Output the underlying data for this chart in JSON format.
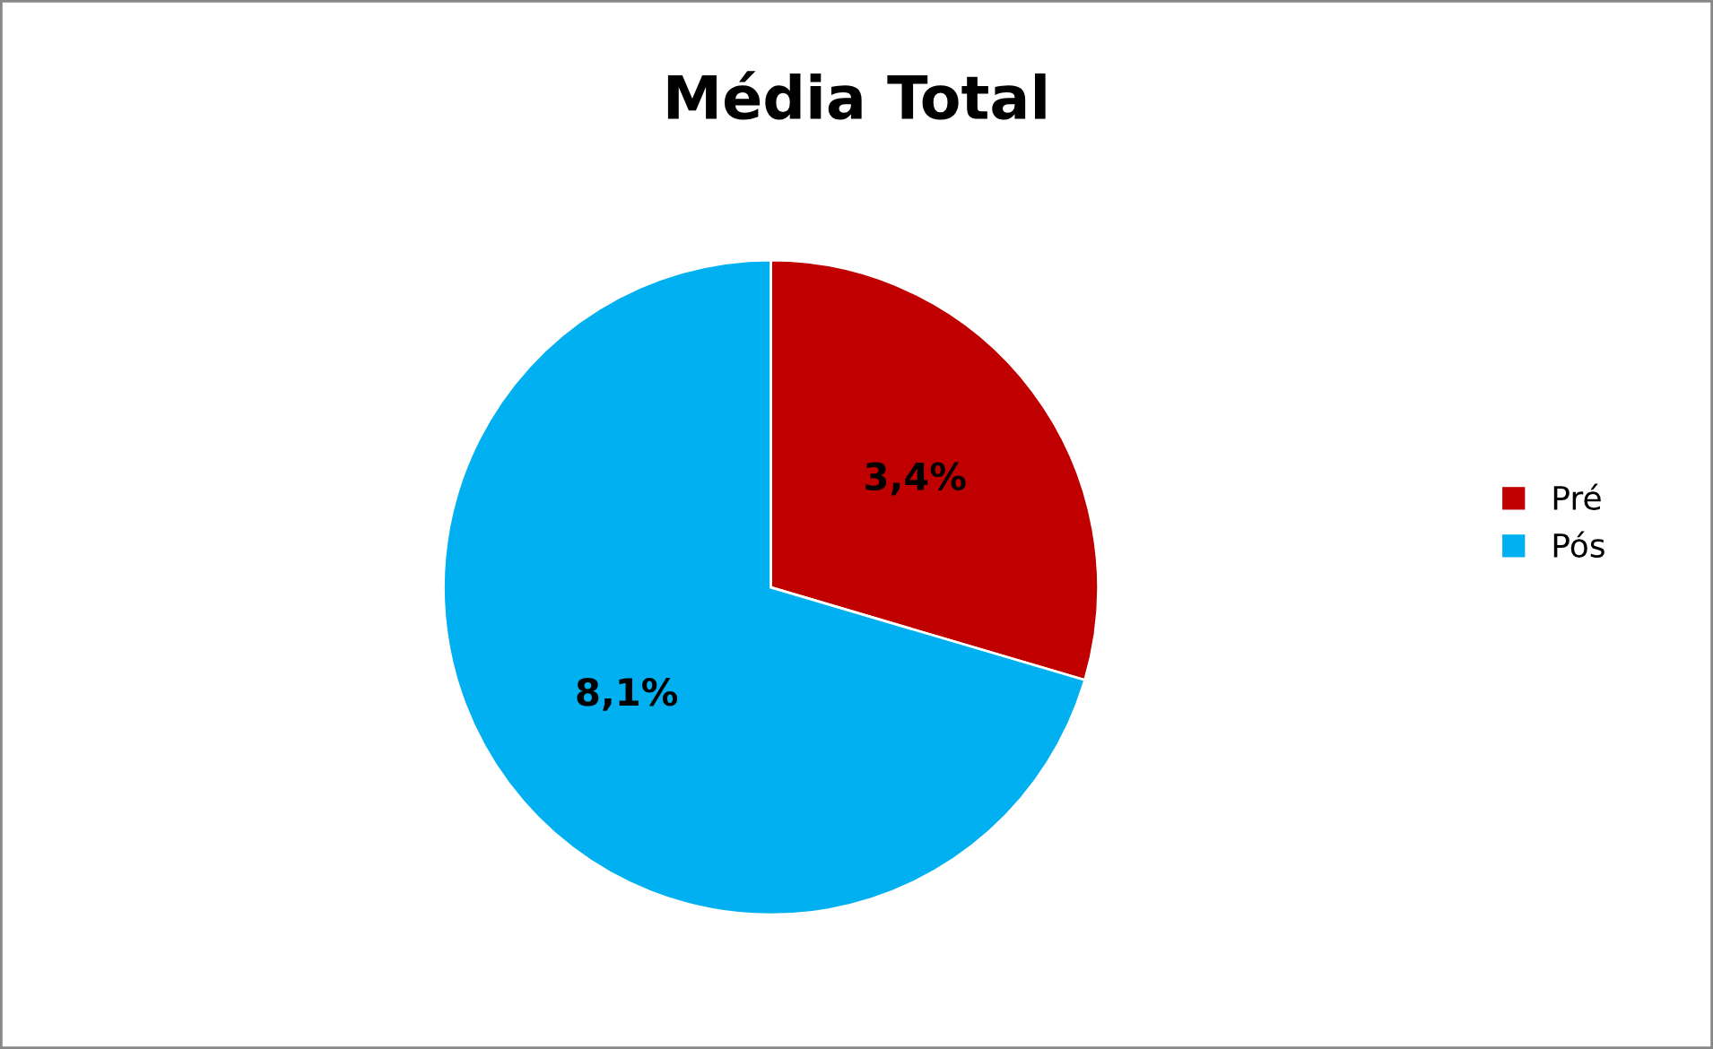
{
  "chart_data": {
    "type": "pie",
    "title": "Média Total",
    "categories": [
      "Pré",
      "Pós"
    ],
    "values": [
      3.4,
      8.1
    ],
    "colors": [
      "#c00000",
      "#00b0f0"
    ],
    "value_labels": [
      "3,4%",
      "8,1%"
    ],
    "legend": "right"
  }
}
